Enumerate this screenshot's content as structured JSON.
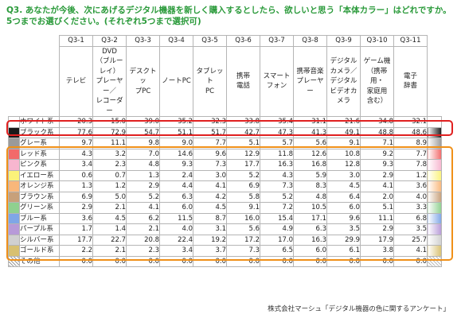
{
  "question": {
    "line1": "Q3. あなたが今後、次にあげるデジタル機器を新しく購入するとしたら、欲しいと思う「本体カラー」はどれですか。",
    "line2": "5つまでお選びください。(それぞれ5つまで選択可)"
  },
  "footer": "株式会社マーシュ「デジタル機器の色に関するアンケート」",
  "chart_data": {
    "type": "table",
    "codes": [
      "Q3-1",
      "Q3-2",
      "Q3-3",
      "Q3-4",
      "Q3-5",
      "Q3-6",
      "Q3-7",
      "Q3-8",
      "Q3-9",
      "Q3-10",
      "Q3-11"
    ],
    "devices": [
      [
        "テレビ"
      ],
      [
        "DVD",
        "（ブルーレイ）",
        "プレーヤー／",
        "レコーダー"
      ],
      [
        "デスクトッ",
        "プPC"
      ],
      [
        "ノートPC"
      ],
      [
        "タブレット",
        "PC"
      ],
      [
        "携帯",
        "電話"
      ],
      [
        "スマート",
        "フォン"
      ],
      [
        "携帯音楽",
        "プレーヤー"
      ],
      [
        "デジタル",
        "カメラ／",
        "デジタル",
        "ビデオカメラ"
      ],
      [
        "ゲーム機",
        "（携帯用・",
        "家庭用",
        "含む）"
      ],
      [
        "電子",
        "辞書"
      ]
    ],
    "rows": [
      {
        "name": "ホワイト系",
        "swatch": "#ffffff",
        "values": [
          20.3,
          15.0,
          39.0,
          35.2,
          32.3,
          33.8,
          35.4,
          31.1,
          21.6,
          34.8,
          32.1
        ]
      },
      {
        "name": "ブラック系",
        "swatch": "#1a1a1a",
        "values": [
          77.6,
          72.9,
          54.7,
          51.1,
          51.7,
          42.7,
          47.3,
          41.3,
          49.1,
          48.8,
          48.6
        ]
      },
      {
        "name": "グレー系",
        "swatch": "#9a9a9a",
        "values": [
          9.7,
          11.1,
          9.8,
          9.0,
          7.7,
          5.1,
          5.7,
          5.6,
          9.1,
          7.1,
          8.9
        ]
      },
      {
        "name": "レッド系",
        "swatch": "#f26a6a",
        "values": [
          4.3,
          3.2,
          7.0,
          14.6,
          9.6,
          12.9,
          11.8,
          12.6,
          10.8,
          9.2,
          7.7
        ]
      },
      {
        "name": "ピンク系",
        "swatch": "#f7b6cf",
        "values": [
          3.4,
          2.3,
          4.8,
          9.3,
          7.3,
          17.7,
          16.3,
          16.8,
          12.8,
          9.3,
          7.8
        ]
      },
      {
        "name": "イエロー系",
        "swatch": "#fbf27a",
        "values": [
          0.6,
          0.7,
          1.3,
          2.4,
          3.0,
          5.2,
          4.3,
          5.9,
          3.0,
          2.9,
          1.2
        ]
      },
      {
        "name": "オレンジ系",
        "swatch": "#f9b77a",
        "values": [
          1.3,
          1.2,
          2.9,
          4.4,
          4.1,
          6.9,
          7.3,
          8.3,
          4.5,
          4.1,
          3.6
        ]
      },
      {
        "name": "ブラウン系",
        "swatch": "#c7a07a",
        "values": [
          6.9,
          5.0,
          5.2,
          6.3,
          4.2,
          5.8,
          5.2,
          4.8,
          6.4,
          2.0,
          4.0
        ]
      },
      {
        "name": "グリーン系",
        "swatch": "#8fd08f",
        "values": [
          2.9,
          2.1,
          4.1,
          6.0,
          4.5,
          9.1,
          7.2,
          10.5,
          6.0,
          5.1,
          3.3
        ]
      },
      {
        "name": "ブルー系",
        "swatch": "#7fa6e6",
        "values": [
          3.6,
          4.5,
          6.2,
          11.5,
          8.7,
          16.0,
          15.4,
          17.1,
          9.6,
          11.1,
          6.8
        ]
      },
      {
        "name": "パープル系",
        "swatch": "#b79ad8",
        "values": [
          1.7,
          1.4,
          2.1,
          4.0,
          3.1,
          5.6,
          4.9,
          6.3,
          3.5,
          2.9,
          3.5
        ]
      },
      {
        "name": "シルバー系",
        "swatch": "#d0d0d0",
        "values": [
          17.7,
          22.7,
          20.8,
          22.4,
          19.2,
          17.2,
          17.0,
          16.3,
          29.9,
          17.9,
          25.7
        ]
      },
      {
        "name": "ゴールド系",
        "swatch": "#d8c070",
        "values": [
          2.2,
          2.1,
          2.3,
          3.4,
          3.7,
          7.3,
          6.5,
          6.0,
          6.1,
          3.8,
          4.1
        ]
      },
      {
        "name": "その他",
        "swatch": "#ffffff",
        "values": [
          0.0,
          0.0,
          0.0,
          0.0,
          0.0,
          0.0,
          0.0,
          0.0,
          0.0,
          0.0,
          0.0
        ]
      }
    ]
  }
}
